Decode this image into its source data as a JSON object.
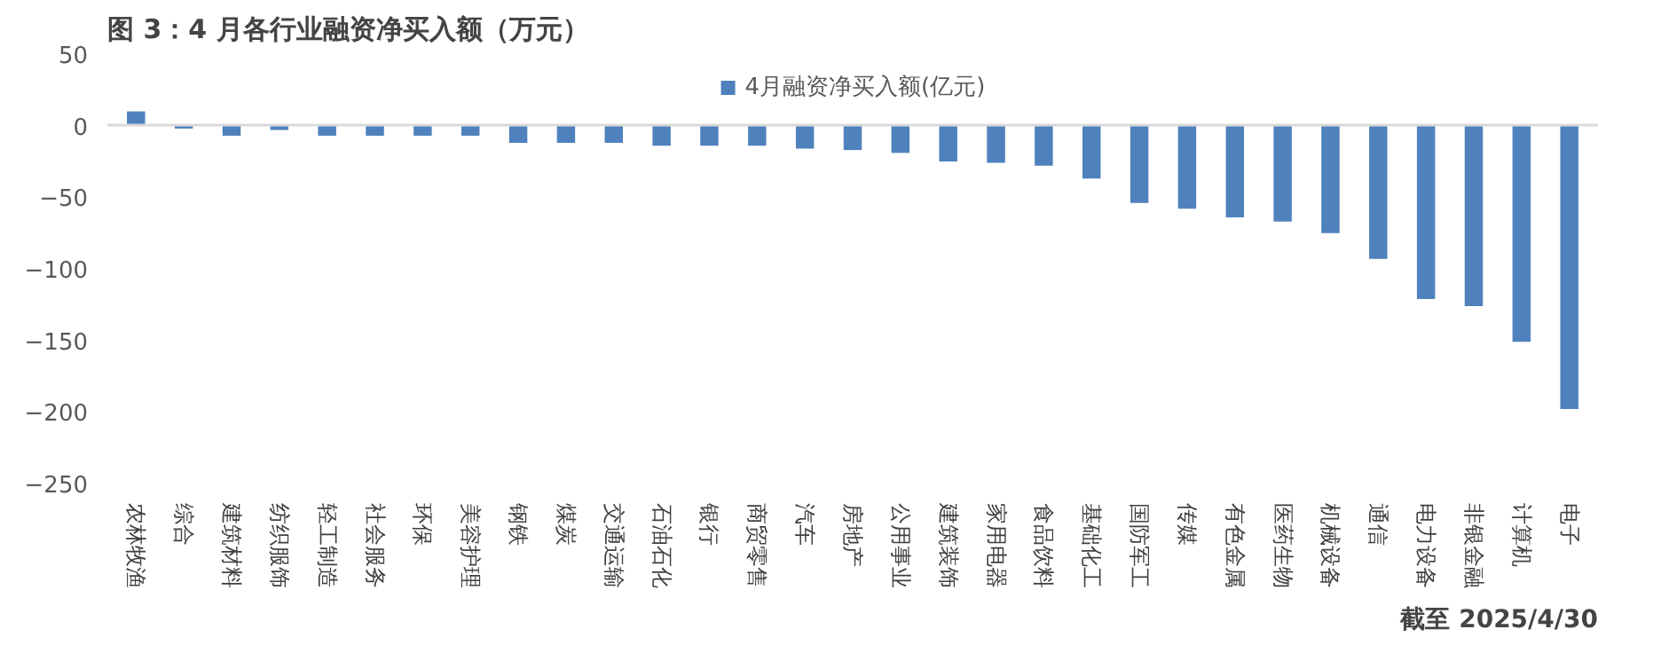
{
  "chart_data": {
    "type": "bar",
    "title": "图 3：4 月各行业融资净买入额（万元）",
    "categories": [
      "农林牧渔",
      "综合",
      "建筑材料",
      "纺织服饰",
      "轻工制造",
      "社会服务",
      "环保",
      "美容护理",
      "钢铁",
      "煤炭",
      "交通运输",
      "石油石化",
      "银行",
      "商贸零售",
      "汽车",
      "房地产",
      "公用事业",
      "建筑装饰",
      "家用电器",
      "食品饮料",
      "基础化工",
      "国防军工",
      "传媒",
      "有色金属",
      "医药生物",
      "机械设备",
      "通信",
      "电力设备",
      "非银金融",
      "计算机",
      "电子"
    ],
    "series": [
      {
        "name": "4月融资净买入额(亿元)",
        "color": "#4f81bd",
        "values": [
          10,
          -2,
          -7,
          -3,
          -7,
          -7,
          -7,
          -7,
          -12,
          -12,
          -12,
          -14,
          -14,
          -14,
          -16,
          -17,
          -19,
          -25,
          -26,
          -28,
          -37,
          -54,
          -58,
          -64,
          -67,
          -75,
          -93,
          -121,
          -126,
          -151,
          -198
        ]
      }
    ],
    "ylim": [
      -250,
      50
    ],
    "yticks": [
      -250,
      -200,
      -150,
      -100,
      -50,
      0,
      50
    ],
    "legend": "top",
    "annotations": [
      "截至 2025/4/30"
    ]
  }
}
